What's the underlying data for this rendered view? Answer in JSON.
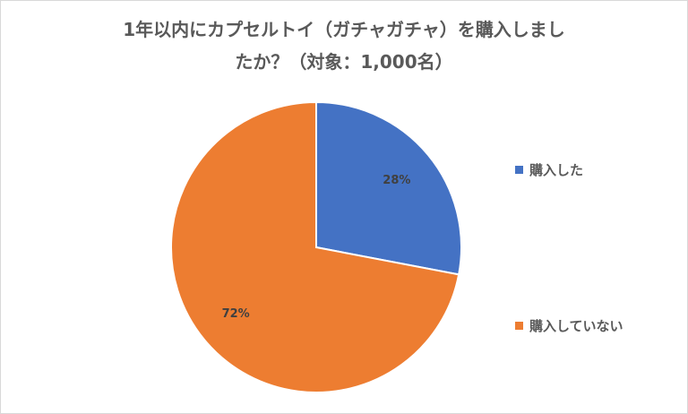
{
  "chart_data": {
    "type": "pie",
    "title_lines": [
      "1年以内にカプセルトイ（ガチャガチャ）を購入しまし",
      "たか？（対象：1,000名）"
    ],
    "slices": [
      {
        "label": "購入した",
        "value": 28,
        "value_label": "28%",
        "color": "#4472C4"
      },
      {
        "label": "購入していない",
        "value": 72,
        "value_label": "72%",
        "color": "#ED7D31"
      }
    ],
    "start_angle_deg": 0,
    "direction": "clockwise",
    "legend_position": "right",
    "slice_border_color": "#ffffff"
  }
}
